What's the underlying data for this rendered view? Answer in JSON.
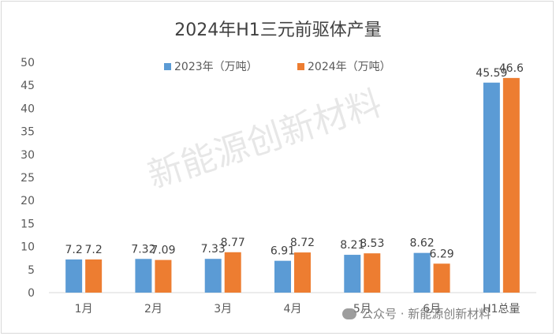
{
  "chart_data": {
    "type": "bar",
    "title": "2024年H1三元前驱体产量",
    "categories": [
      "1月",
      "2月",
      "3月",
      "4月",
      "5月",
      "6月",
      "H1总量"
    ],
    "series": [
      {
        "name": "2023年（万吨）",
        "color": "#5b9bd5",
        "values": [
          7.2,
          7.32,
          7.33,
          6.91,
          8.21,
          8.62,
          45.59
        ]
      },
      {
        "name": "2024年（万吨）",
        "color": "#ed7d31",
        "values": [
          7.2,
          7.09,
          8.77,
          8.72,
          8.53,
          6.29,
          46.6
        ]
      }
    ],
    "ylim": [
      0,
      50
    ],
    "yticks": [
      0,
      5,
      10,
      15,
      20,
      25,
      30,
      35,
      40,
      45,
      50
    ],
    "legend_position": "top",
    "grid": false
  },
  "watermark": {
    "main_text": "新能源创新材料",
    "bottom_text": "公众号 · 新能源创新材料"
  }
}
